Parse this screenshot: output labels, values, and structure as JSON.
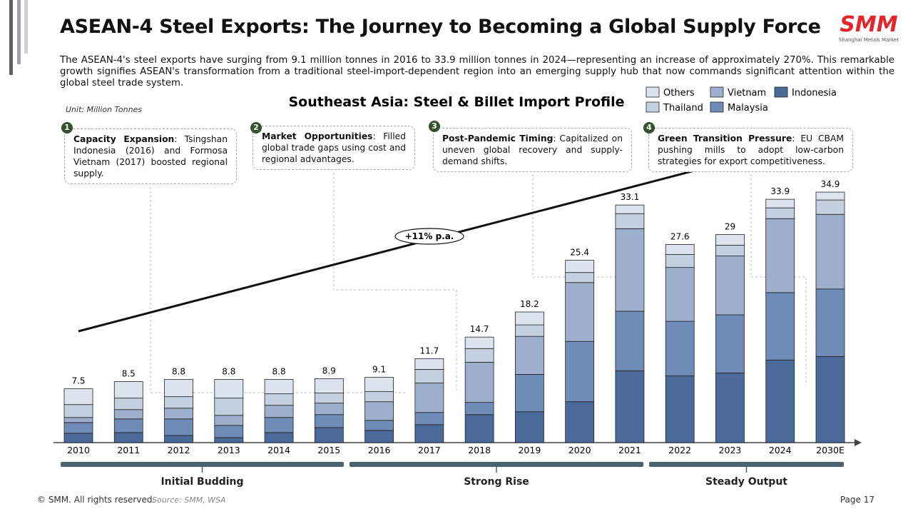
{
  "header": {
    "title": "ASEAN-4 Steel Exports: The Journey to Becoming a Global Supply Force",
    "description": "The ASEAN-4's steel exports have surging from 9.1 million tonnes in 2016 to 33.9 million tonnes in 2024—representing an increase of approximately 270%. This remarkable growth signifies ASEAN's transformation from a traditional steel-import-dependent region into an emerging supply hub that now commands significant attention within the global steel trade system.",
    "logo": "SMM",
    "logo_subtitle": "Shanghai Metals Market"
  },
  "chart_data": {
    "type": "stacked_bar",
    "title": "Southeast Asia: Steel & Billet Import Profile",
    "unit": "Unit: Million Tonnes",
    "categories": [
      "2010",
      "2011",
      "2012",
      "2013",
      "2014",
      "2015",
      "2016",
      "2017",
      "2018",
      "2019",
      "2020",
      "2021",
      "2022",
      "2023",
      "2024",
      "2030E"
    ],
    "series": [
      {
        "name": "Indonesia",
        "color": "#4a6a9a",
        "values": [
          1.3,
          1.4,
          1.0,
          0.7,
          1.4,
          2.1,
          1.7,
          2.5,
          3.9,
          4.3,
          5.7,
          10.0,
          9.3,
          9.7,
          11.5,
          12.0
        ]
      },
      {
        "name": "Malaysia",
        "color": "#6f8cb8",
        "values": [
          1.5,
          1.9,
          2.3,
          1.7,
          2.1,
          1.8,
          1.4,
          1.7,
          1.7,
          5.2,
          8.4,
          8.3,
          7.6,
          8.1,
          9.4,
          9.4
        ]
      },
      {
        "name": "Vietnam",
        "color": "#9dafcc",
        "values": [
          0.7,
          1.3,
          1.5,
          1.4,
          1.7,
          1.6,
          2.6,
          4.1,
          5.6,
          5.3,
          8.2,
          11.5,
          7.5,
          8.2,
          10.3,
          10.4
        ]
      },
      {
        "name": "Thailand",
        "color": "#c4cfe0",
        "values": [
          1.8,
          1.6,
          1.6,
          2.4,
          1.6,
          1.4,
          1.4,
          1.9,
          1.9,
          1.6,
          1.4,
          2.1,
          1.8,
          1.5,
          1.5,
          2.0
        ]
      },
      {
        "name": "Others",
        "color": "#dde3ee",
        "values": [
          2.2,
          2.3,
          2.4,
          2.6,
          2.0,
          2.0,
          2.0,
          1.5,
          1.6,
          1.8,
          1.7,
          1.2,
          1.4,
          1.5,
          1.2,
          1.1
        ]
      }
    ],
    "totals": [
      7.5,
      8.5,
      8.8,
      8.8,
      8.8,
      8.9,
      9.1,
      11.7,
      14.7,
      18.2,
      25.4,
      33.1,
      27.6,
      29.0,
      33.9,
      34.9
    ],
    "ylim": [
      0,
      36
    ],
    "trend_label": "+11% p.a.",
    "annotations": [
      {
        "number": 1,
        "label": "Capacity Expansion",
        "text": ": Tsingshan Indonesia (2016) and Formosa Vietnam (2017) boosted regional supply."
      },
      {
        "number": 2,
        "label": "Market Opportunities",
        "text": ": Filled global trade gaps using cost and regional advantages."
      },
      {
        "number": 3,
        "label": "Post-Pandemic Timing",
        "text": ": Capitalized on uneven global recovery and supply-demand shifts."
      },
      {
        "number": 4,
        "label": "Green Transition Pressure",
        "text": ": EU CBAM pushing mills to adopt low-carbon strategies for export competitiveness."
      }
    ],
    "phases": [
      "Initial Budding",
      "Strong Rise",
      "Steady Output"
    ]
  },
  "footer": {
    "copyright": "© SMM. All rights reserved.",
    "source": "Source: SMM, WSA",
    "page": "Page 17"
  }
}
